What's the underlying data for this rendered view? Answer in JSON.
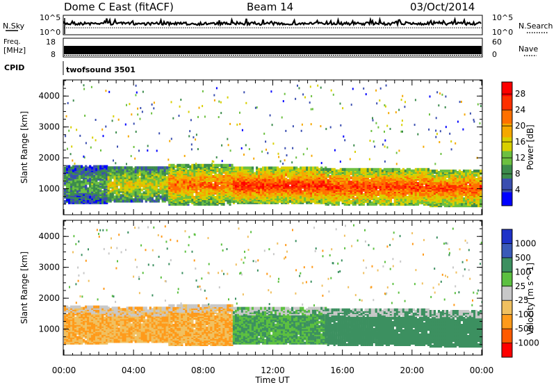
{
  "header": {
    "left_title": "Dome C East (fitACF)",
    "center_title": "Beam 14",
    "date": "03/Oct/2014"
  },
  "strips": {
    "nsky": {
      "label": "N.Sky",
      "right_label": "N.Search",
      "ticks": [
        "10^5",
        "10^0"
      ]
    },
    "freq": {
      "label_line1": "Freq.",
      "label_line2": "[MHz]",
      "right_label": "Nave",
      "left_ticks": [
        "18",
        "8"
      ],
      "right_ticks": [
        "60",
        "0"
      ]
    },
    "cpid": {
      "label": "CPID",
      "text": "twofsound 3501"
    }
  },
  "chart_data": [
    {
      "type": "heatmap",
      "name": "Power",
      "ylabel": "Slant Range [km]",
      "y_ticks": [
        1000,
        2000,
        3000,
        4000
      ],
      "ylim": [
        180,
        4500
      ],
      "x_ticks": [
        "00:00",
        "04:00",
        "08:00",
        "12:00",
        "16:00",
        "20:00",
        "00:00"
      ],
      "xlim_hours": [
        0,
        24
      ],
      "colorbar": {
        "label": "Power [dB]",
        "tick_labels": [
          "4",
          "8",
          "12",
          "16",
          "20",
          "24",
          "28"
        ],
        "range": [
          0,
          31
        ],
        "colors": [
          "#0000ff",
          "#3a4eb0",
          "#3c8c4c",
          "#6cc040",
          "#d8d000",
          "#f5a800",
          "#ff7000",
          "#ff3000",
          "#ff0000"
        ]
      },
      "bands": [
        {
          "t0": 0.0,
          "t1": 2.5,
          "r0": 550,
          "r1": 1750,
          "power": 10
        },
        {
          "t0": 2.5,
          "t1": 6.0,
          "r0": 600,
          "r1": 1700,
          "power": 16
        },
        {
          "t0": 6.0,
          "t1": 9.7,
          "r0": 500,
          "r1": 1800,
          "power": 22
        },
        {
          "t0": 9.7,
          "t1": 15.0,
          "r0": 550,
          "r1": 1700,
          "power": 26
        },
        {
          "t0": 15.0,
          "t1": 21.0,
          "r0": 500,
          "r1": 1650,
          "power": 25
        },
        {
          "t0": 21.0,
          "t1": 24.0,
          "r0": 450,
          "r1": 1600,
          "power": 24
        }
      ]
    },
    {
      "type": "heatmap",
      "name": "Velocity",
      "ylabel": "Slant Range [km]",
      "y_ticks": [
        1000,
        2000,
        3000,
        4000
      ],
      "ylim": [
        180,
        4500
      ],
      "x_ticks": [
        "00:00",
        "04:00",
        "08:00",
        "12:00",
        "16:00",
        "20:00",
        "00:00"
      ],
      "xlim_hours": [
        0,
        24
      ],
      "xlabel": "Time UT",
      "colorbar": {
        "label": "Velocity [m s^-1]",
        "tick_labels": [
          "-1000",
          "-500",
          "-100",
          "-25",
          "25",
          "100",
          "500",
          "1000"
        ],
        "colors": [
          "#ff0000",
          "#ff5a00",
          "#ff9a1a",
          "#f0c060",
          "#c8c8c8",
          "#5cc040",
          "#3c9060",
          "#3a5ab8",
          "#1e32c8"
        ]
      },
      "bands": [
        {
          "t0": 0.0,
          "t1": 2.5,
          "r0": 550,
          "r1": 1750,
          "velocity": -100
        },
        {
          "t0": 2.5,
          "t1": 6.0,
          "r0": 600,
          "r1": 1700,
          "velocity": -100
        },
        {
          "t0": 6.0,
          "t1": 9.7,
          "r0": 500,
          "r1": 1800,
          "velocity": -100
        },
        {
          "t0": 9.7,
          "t1": 15.0,
          "r0": 550,
          "r1": 1700,
          "velocity": 100
        },
        {
          "t0": 15.0,
          "t1": 21.0,
          "r0": 500,
          "r1": 1650,
          "velocity": 300
        },
        {
          "t0": 21.0,
          "t1": 24.0,
          "r0": 450,
          "r1": 1600,
          "velocity": 300
        }
      ]
    }
  ]
}
